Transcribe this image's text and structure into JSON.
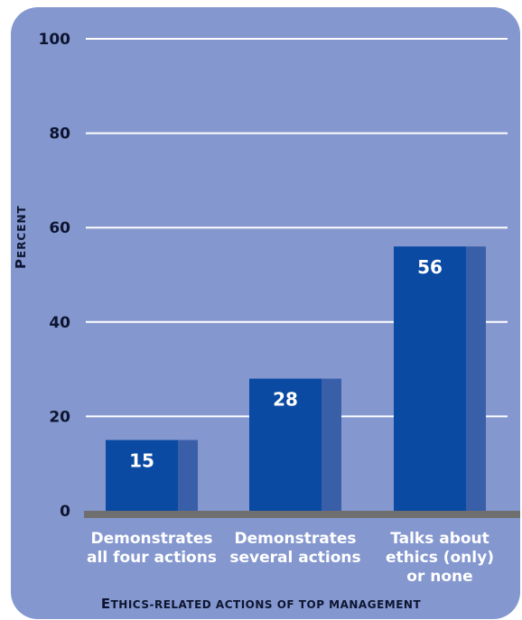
{
  "chart_data": {
    "type": "bar",
    "categories": [
      [
        "Demonstrates",
        "all four actions"
      ],
      [
        "Demonstrates",
        "several actions"
      ],
      [
        "Talks about",
        "ethics (only)",
        "or none"
      ]
    ],
    "values": [
      15,
      28,
      56
    ],
    "data_labels": [
      "15",
      "28",
      "56"
    ],
    "ylim": [
      0,
      100
    ],
    "yticks": [
      0,
      20,
      40,
      60,
      80,
      100
    ],
    "ytick_labels": [
      "0",
      "20",
      "40",
      "60",
      "80",
      "100"
    ],
    "ylabel": "Percent",
    "xlabel": "Ethics-related actions of top management",
    "grid": true,
    "colors": {
      "background": "#8497cf",
      "bar_front": "#0a4aa3",
      "bar_side": "#3a5fa9",
      "gridline": "#ffffff",
      "baseline": "#6f6f6f",
      "text_dark": "#0d1530",
      "text_light": "#ffffff"
    }
  }
}
